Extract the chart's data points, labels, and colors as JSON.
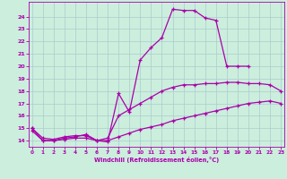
{
  "xlabel": "Windchill (Refroidissement éolien,°C)",
  "bg_color": "#cceedd",
  "grid_color": "#aacccc",
  "line_color": "#aa00aa",
  "line1_x": [
    0,
    1,
    2,
    3,
    4,
    5,
    6,
    7,
    8,
    9,
    10,
    11,
    12,
    13,
    14,
    15,
    16,
    17,
    18,
    19,
    20
  ],
  "line1_y": [
    15,
    14,
    14,
    14.2,
    14.3,
    14.5,
    14,
    13.9,
    17.8,
    16.3,
    20.5,
    21.5,
    22.3,
    24.6,
    24.5,
    24.5,
    23.9,
    23.7,
    20.0,
    20.0,
    20.0
  ],
  "line2_x": [
    0,
    1,
    2,
    3,
    4,
    5,
    6,
    7,
    8,
    9,
    10,
    11,
    12,
    13,
    14,
    15,
    16,
    17,
    18,
    19,
    20,
    21,
    22,
    23
  ],
  "line2_y": [
    15,
    14.2,
    14.1,
    14.3,
    14.4,
    14.4,
    14.0,
    14.2,
    16.0,
    16.5,
    17.0,
    17.5,
    18.0,
    18.3,
    18.5,
    18.5,
    18.6,
    18.6,
    18.7,
    18.7,
    18.6,
    18.6,
    18.5,
    18.0
  ],
  "line3_x": [
    0,
    1,
    2,
    3,
    4,
    5,
    6,
    7,
    8,
    9,
    10,
    11,
    12,
    13,
    14,
    15,
    16,
    17,
    18,
    19,
    20,
    21,
    22,
    23
  ],
  "line3_y": [
    14.8,
    14.0,
    14.0,
    14.1,
    14.2,
    14.2,
    14.0,
    14.0,
    14.3,
    14.6,
    14.9,
    15.1,
    15.3,
    15.6,
    15.8,
    16.0,
    16.2,
    16.4,
    16.6,
    16.8,
    17.0,
    17.1,
    17.2,
    17.0
  ],
  "xlim": [
    -0.3,
    23.3
  ],
  "ylim": [
    13.5,
    25.2
  ],
  "yticks": [
    14,
    15,
    16,
    17,
    18,
    19,
    20,
    21,
    22,
    23,
    24
  ],
  "xticks": [
    0,
    1,
    2,
    3,
    4,
    5,
    6,
    7,
    8,
    9,
    10,
    11,
    12,
    13,
    14,
    15,
    16,
    17,
    18,
    19,
    20,
    21,
    22,
    23
  ]
}
